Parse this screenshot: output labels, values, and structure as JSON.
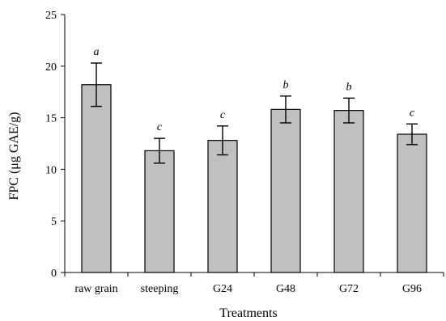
{
  "chart_data": {
    "type": "bar",
    "xlabel": "Treatments",
    "ylabel": "FPC (μg GAE/g)",
    "ylim": [
      0,
      25
    ],
    "yticks": [
      0,
      5,
      10,
      15,
      20,
      25
    ],
    "grid": false,
    "categories": [
      "raw grain",
      "steeping",
      "G24",
      "G48",
      "G72",
      "G96"
    ],
    "values": [
      18.2,
      11.8,
      12.8,
      15.8,
      15.7,
      13.4
    ],
    "errors": [
      2.1,
      1.2,
      1.4,
      1.3,
      1.2,
      1.0
    ],
    "significance": [
      "a",
      "c",
      "c",
      "b",
      "b",
      "c"
    ],
    "colors": {
      "bar_fill": "#c0c0c0",
      "bar_stroke": "#000000"
    }
  }
}
